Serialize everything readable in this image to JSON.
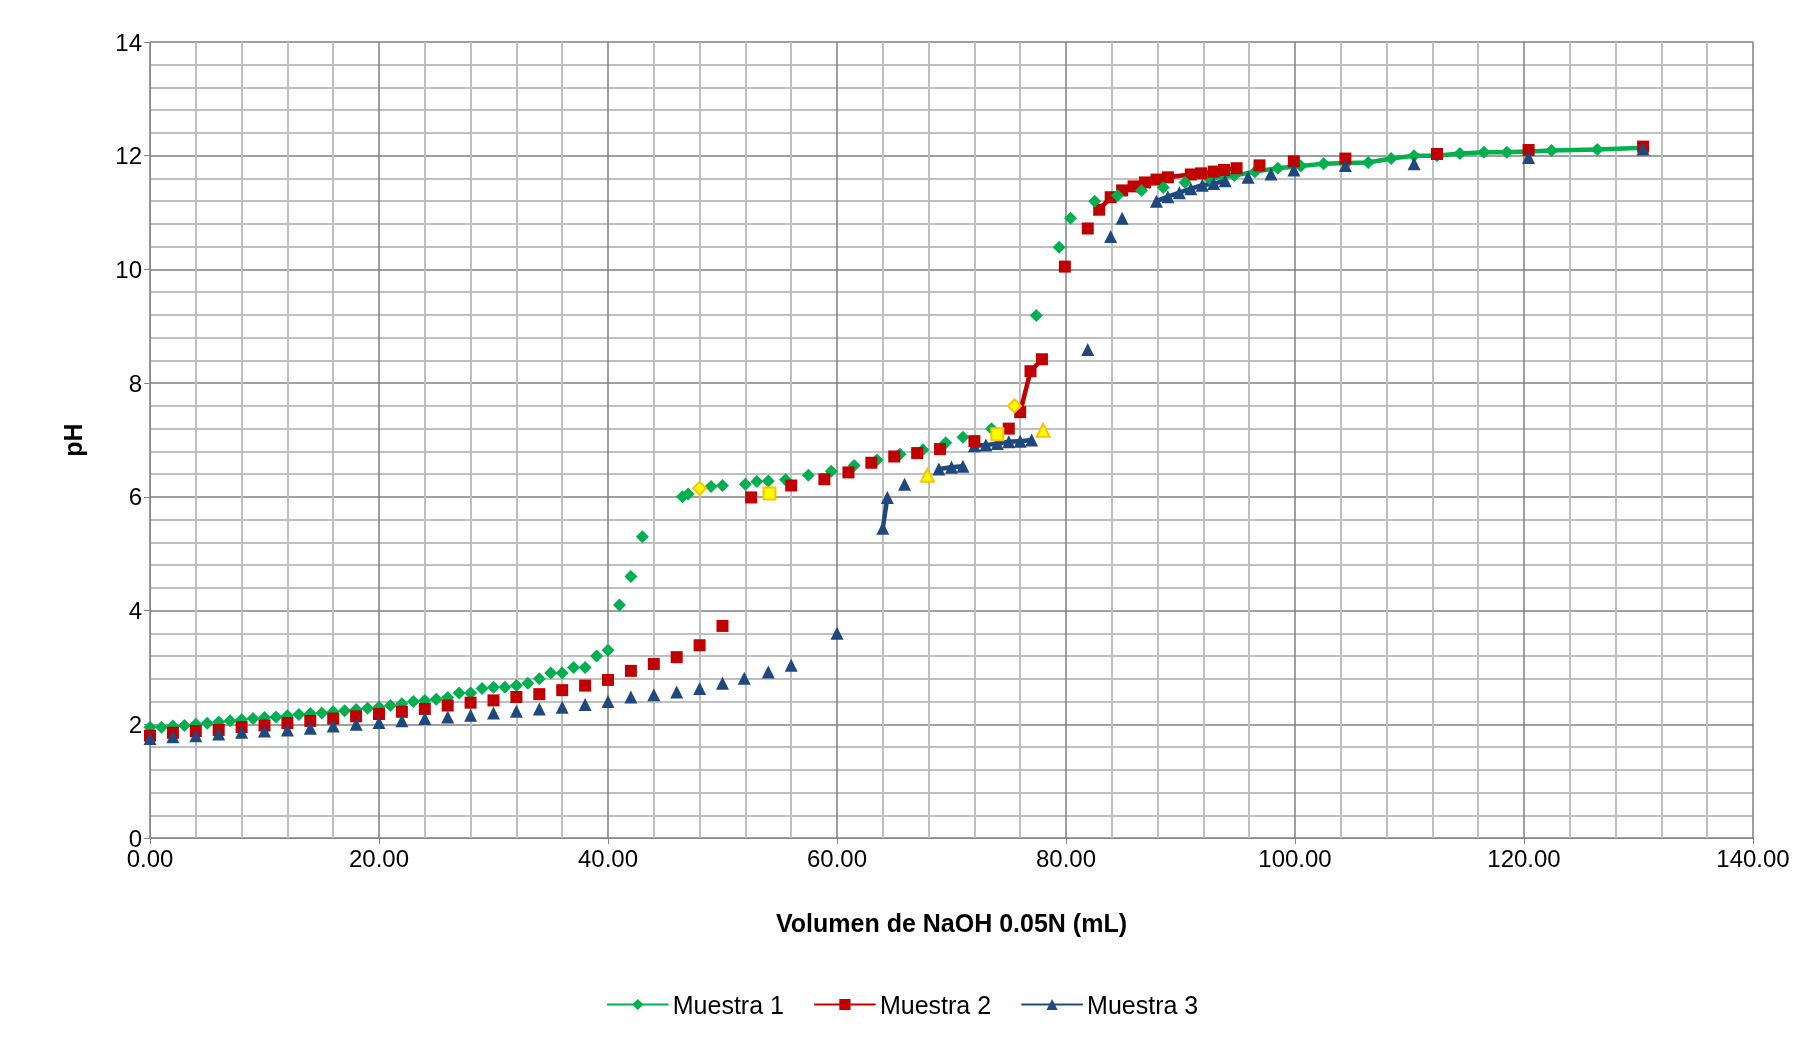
{
  "chart_data": {
    "type": "line",
    "xlabel": "Volumen de NaOH 0.05N (mL)",
    "ylabel": "pH",
    "xlim": [
      0,
      140
    ],
    "xticks": [
      {
        "value": 0,
        "label": "0.00"
      },
      {
        "value": 20,
        "label": "20.00"
      },
      {
        "value": 40,
        "label": "40.00"
      },
      {
        "value": 60,
        "label": "60.00"
      },
      {
        "value": 80,
        "label": "80.00"
      },
      {
        "value": 100,
        "label": "100.00"
      },
      {
        "value": 120,
        "label": "120.00"
      },
      {
        "value": 140,
        "label": "140.00"
      }
    ],
    "ylim": [
      0,
      14
    ],
    "yticks": [
      0,
      2,
      4,
      6,
      8,
      10,
      12,
      14
    ],
    "grid": true,
    "legend": "bottom",
    "series": [
      {
        "name": "Muestra 1",
        "marker": "diamond",
        "color": "#00b050",
        "x": [
          92.5,
          94.7,
          96.5,
          98.5,
          100.5,
          102.5,
          104.5,
          106.4,
          108.4,
          110.4,
          112.4,
          114.4,
          116.5,
          118.5,
          122.4,
          126.4,
          130.4
        ],
        "values": [
          11.6,
          11.65,
          11.72,
          11.78,
          11.82,
          11.86,
          11.87,
          11.88,
          11.95,
          12.0,
          12.0,
          12.04,
          12.06,
          12.06,
          12.09,
          12.11,
          12.14
        ]
      },
      {
        "name": "Muestra 2",
        "marker": "square",
        "color": "#c00000",
        "x": [
          82.9,
          83.9,
          84.9,
          85.9,
          86.9,
          87.9,
          88.9,
          90.9,
          91.8,
          92.9,
          93.8,
          94.9
        ],
        "values": [
          11.05,
          11.27,
          11.39,
          11.46,
          11.53,
          11.58,
          11.62,
          11.67,
          11.69,
          11.72,
          11.75,
          11.78
        ]
      },
      {
        "name": "Muestra 3",
        "marker": "triangle",
        "color": "#1f497d",
        "x": [
          87.9,
          88.9,
          89.9,
          90.9,
          91.9,
          92.9,
          93.9
        ],
        "values": [
          11.2,
          11.28,
          11.35,
          11.42,
          11.48,
          11.51,
          11.56
        ]
      },
      {
        "marker": "square",
        "color": "#c00000",
        "x": [
          76,
          76.9,
          77.9
        ],
        "values": [
          7.49,
          8.21,
          8.42
        ]
      },
      {
        "marker": "triangle",
        "color": "#1f497d",
        "x": [
          64,
          64.4
        ],
        "values": [
          5.45,
          5.99
        ]
      },
      {
        "marker": "triangle",
        "color": "#1f497d",
        "x": [
          68.9,
          70,
          71
        ],
        "values": [
          6.49,
          6.52,
          6.54
        ]
      },
      {
        "marker": "triangle",
        "color": "#1f497d",
        "x": [
          72,
          73,
          74,
          75,
          76,
          77
        ],
        "values": [
          6.9,
          6.91,
          6.94,
          6.97,
          6.98,
          7.0
        ]
      },
      {
        "type": "scatter",
        "marker": "diamond",
        "color": "#00b050",
        "x": [
          0,
          1,
          2,
          3,
          4,
          5,
          6,
          7,
          8,
          9,
          10,
          11,
          12,
          13,
          14,
          15,
          16,
          17,
          18,
          19,
          20,
          21,
          22,
          23,
          24,
          25,
          26,
          27,
          28,
          29,
          30,
          31,
          32,
          33,
          34,
          35,
          36,
          37,
          38,
          39,
          40,
          41,
          42,
          43,
          46.5,
          47,
          49,
          50,
          52,
          53,
          54,
          55.5,
          57.5,
          59.5,
          61.5,
          63.5,
          65.5,
          67.5,
          69.5,
          71,
          73.5,
          77.4,
          79.4,
          80.4,
          82.5,
          84.5,
          86.6,
          88.5,
          90.4
        ],
        "values": [
          1.95,
          1.95,
          1.97,
          1.98,
          2.0,
          2.02,
          2.04,
          2.06,
          2.08,
          2.1,
          2.12,
          2.13,
          2.15,
          2.17,
          2.19,
          2.2,
          2.22,
          2.24,
          2.26,
          2.28,
          2.3,
          2.33,
          2.36,
          2.4,
          2.42,
          2.44,
          2.47,
          2.55,
          2.55,
          2.63,
          2.65,
          2.65,
          2.68,
          2.72,
          2.8,
          2.9,
          2.9,
          3.0,
          3.0,
          3.2,
          3.3,
          4.1,
          4.6,
          5.3,
          6.0,
          6.05,
          6.18,
          6.2,
          6.22,
          6.27,
          6.28,
          6.3,
          6.38,
          6.45,
          6.55,
          6.65,
          6.75,
          6.83,
          6.95,
          7.05,
          7.2,
          9.19,
          10.39,
          10.9,
          11.2,
          11.3,
          11.39,
          11.44,
          11.53
        ]
      },
      {
        "type": "scatter",
        "marker": "square",
        "color": "#c00000",
        "x": [
          0,
          2,
          4,
          6,
          8,
          10,
          12,
          14,
          16,
          18,
          20,
          22,
          24,
          26,
          28,
          30,
          32,
          34,
          36,
          38,
          40,
          42,
          44,
          46,
          48,
          50,
          52.5,
          56,
          58.9,
          61,
          63,
          65,
          67,
          69,
          72,
          75,
          79.9,
          81.9,
          96.9,
          99.9,
          104.4,
          112.4,
          120.4,
          130.4
        ],
        "values": [
          1.8,
          1.85,
          1.88,
          1.9,
          1.95,
          1.98,
          2.02,
          2.06,
          2.1,
          2.14,
          2.18,
          2.22,
          2.27,
          2.33,
          2.38,
          2.42,
          2.48,
          2.53,
          2.6,
          2.68,
          2.78,
          2.94,
          3.06,
          3.18,
          3.39,
          3.73,
          5.99,
          6.2,
          6.31,
          6.43,
          6.6,
          6.71,
          6.77,
          6.84,
          6.98,
          7.2,
          10.05,
          10.72,
          11.83,
          11.9,
          11.95,
          12.03,
          12.1,
          12.16
        ]
      },
      {
        "type": "scatter",
        "marker": "triangle",
        "color": "#1f497d",
        "x": [
          0,
          2,
          4,
          6,
          8,
          10,
          12,
          14,
          16,
          18,
          20,
          22,
          24,
          26,
          28,
          30,
          32,
          34,
          36,
          38,
          40,
          42,
          44,
          46,
          48,
          50,
          51.9,
          54,
          56,
          60,
          65.9,
          81.9,
          83.9,
          84.9,
          95.9,
          97.9,
          99.9,
          104.4,
          110.4,
          120.4,
          130.4
        ],
        "values": [
          1.75,
          1.78,
          1.8,
          1.83,
          1.86,
          1.88,
          1.9,
          1.93,
          1.97,
          2.0,
          2.03,
          2.06,
          2.1,
          2.13,
          2.16,
          2.2,
          2.23,
          2.27,
          2.3,
          2.35,
          2.4,
          2.48,
          2.52,
          2.57,
          2.63,
          2.72,
          2.81,
          2.92,
          3.04,
          3.6,
          6.22,
          8.59,
          10.58,
          10.9,
          11.62,
          11.68,
          11.75,
          11.83,
          11.86,
          11.97,
          12.12
        ]
      },
      {
        "type": "scatter",
        "marker": "diamond",
        "color": "#ffff00",
        "x": [
          48,
          75.5
        ],
        "values": [
          6.15,
          7.6
        ]
      },
      {
        "type": "scatter",
        "marker": "square",
        "color": "#ffff00",
        "x": [
          54.1,
          74
        ],
        "values": [
          6.06,
          7.1
        ]
      },
      {
        "type": "scatter",
        "marker": "triangle",
        "color": "#ffff00",
        "x": [
          67.9,
          78
        ],
        "values": [
          6.38,
          7.17
        ]
      }
    ]
  }
}
